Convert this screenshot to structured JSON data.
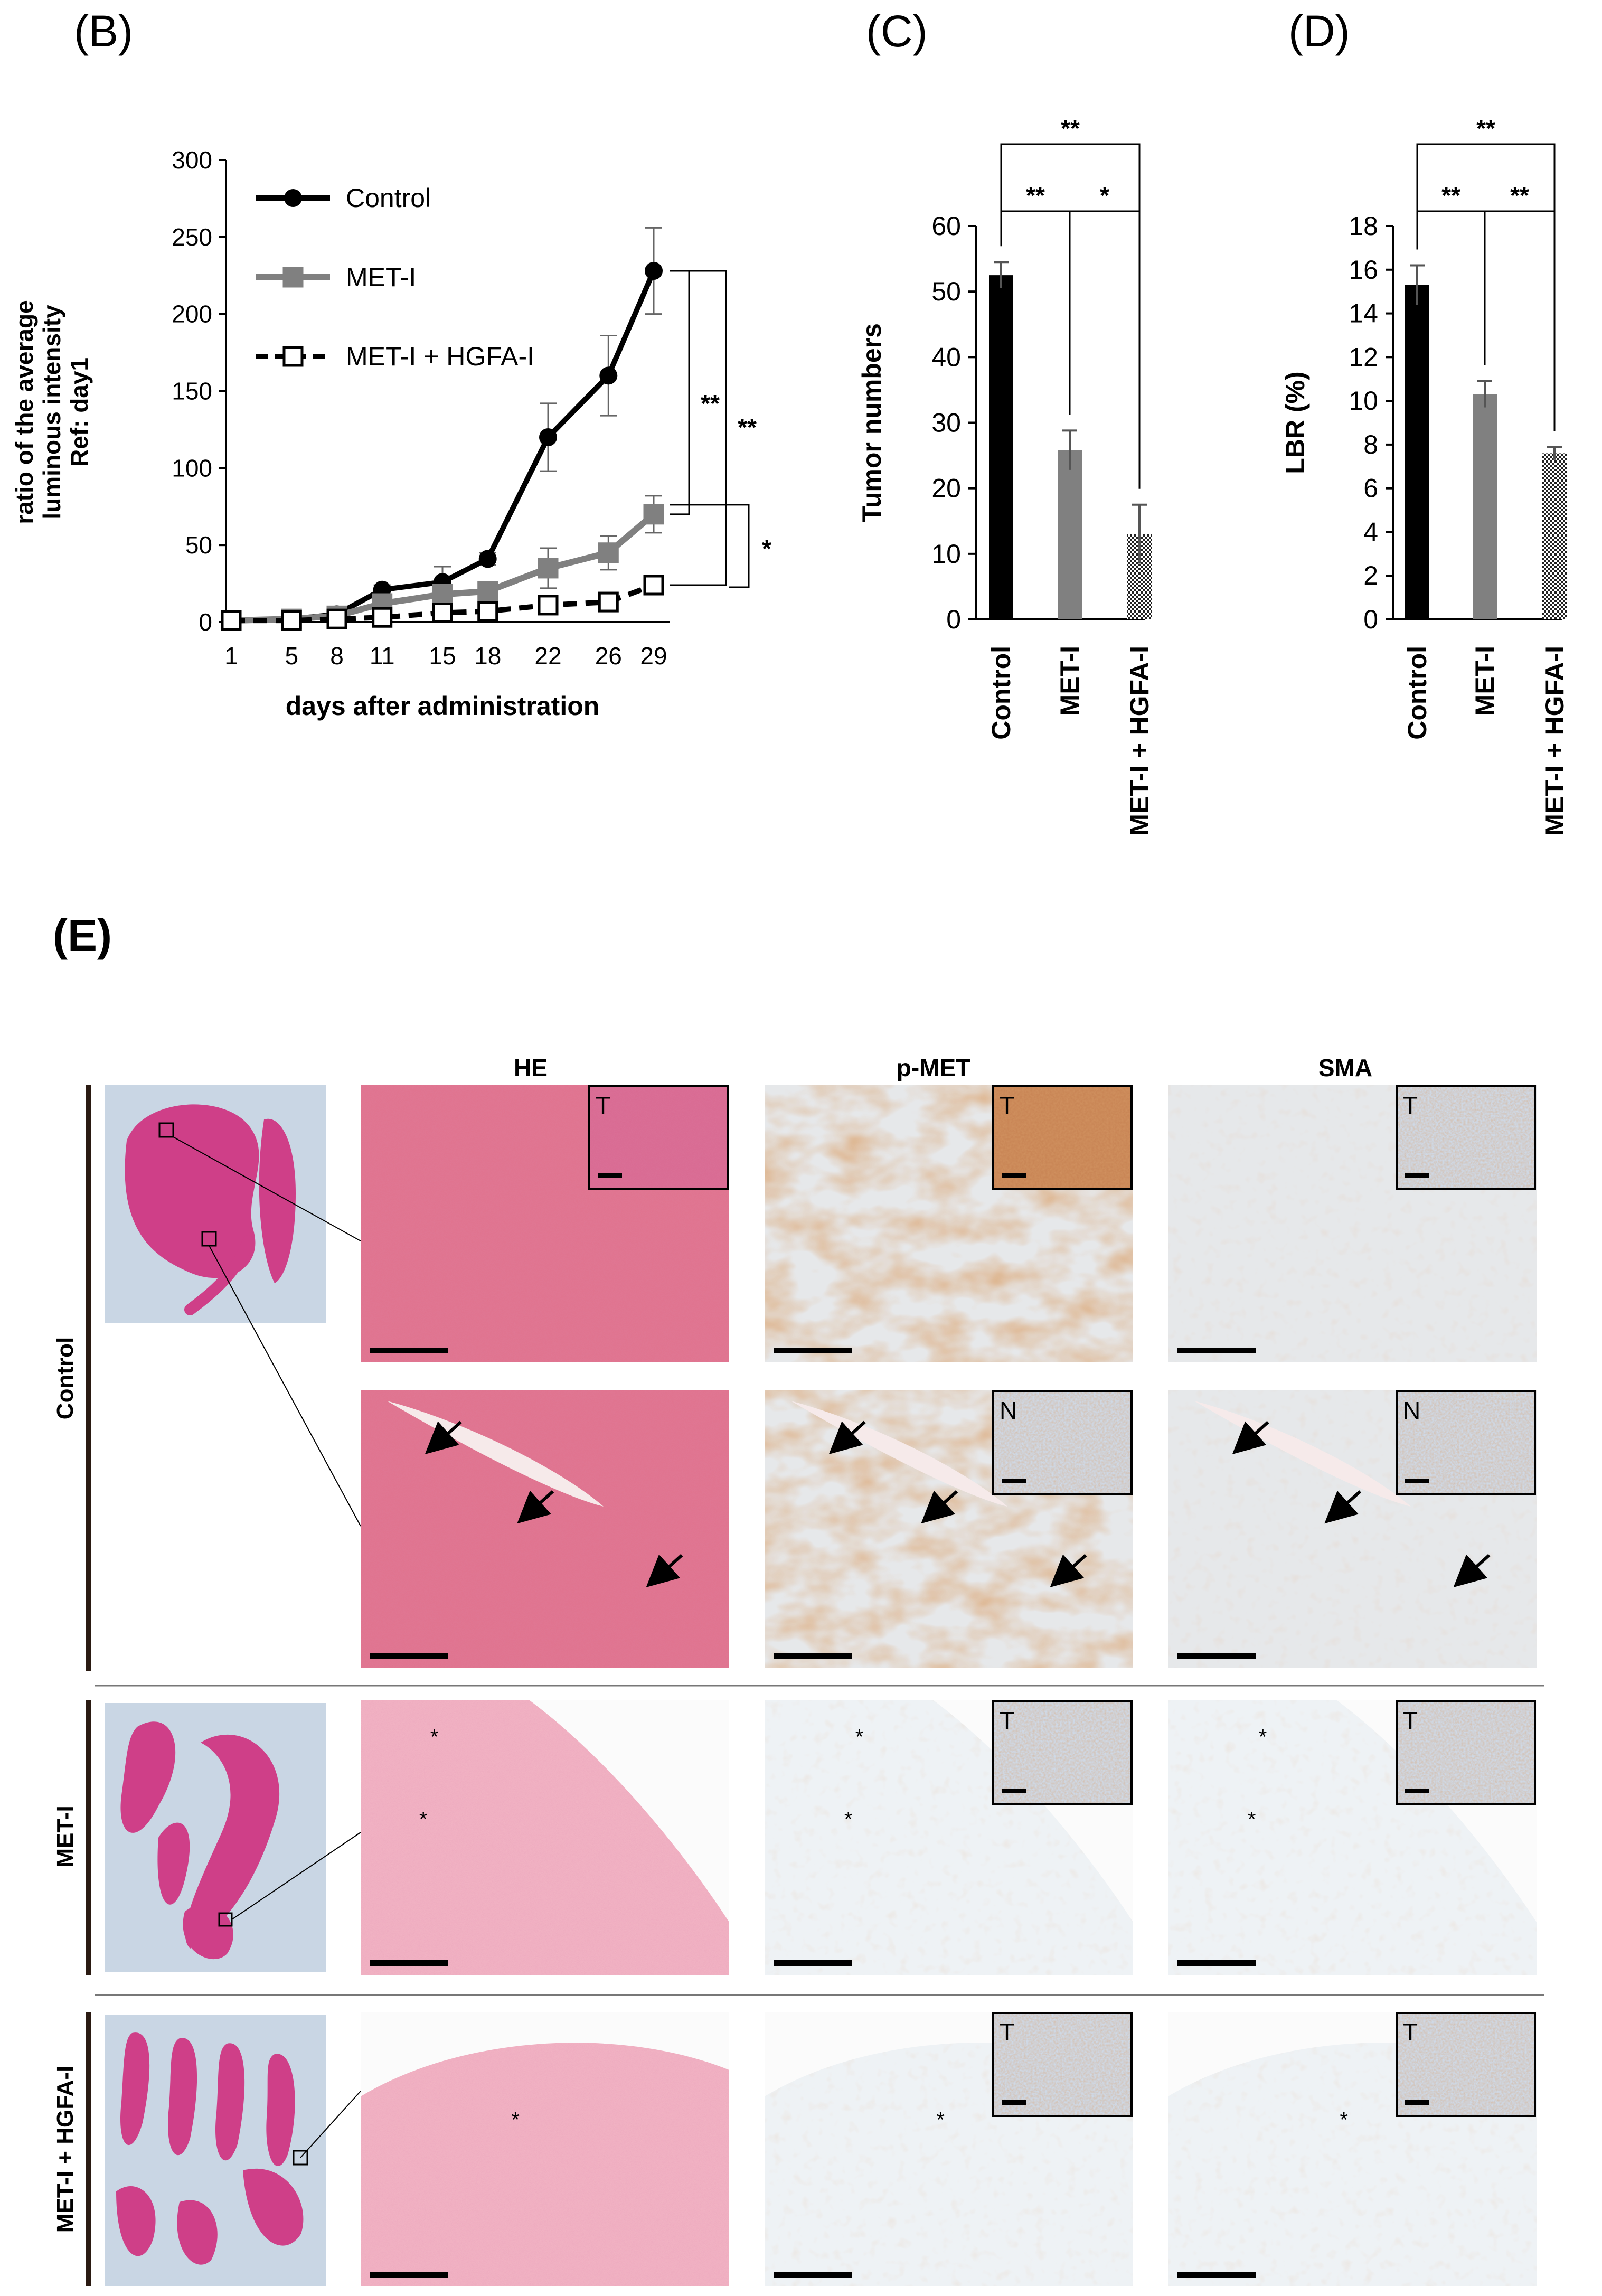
{
  "panels": {
    "B": "(B)",
    "C": "(C)",
    "D": "(D)",
    "E": "(E)"
  },
  "colors": {
    "control": "#000000",
    "met_i": "#808080",
    "combo_fill": "#ffffff",
    "he_tissue": "#e26f93",
    "ihc_background": "#dde6ee",
    "dab_brown": "#b5652e"
  },
  "chart_data": [
    {
      "id": "B",
      "type": "line",
      "title": "",
      "xlabel": "days after administration",
      "ylabel": "ratio of the average luminous intensity Ref: day1",
      "ylabel_lines": [
        "ratio of the average",
        "luminous intensity",
        "Ref: day1"
      ],
      "x": [
        1,
        5,
        8,
        11,
        15,
        18,
        22,
        26,
        29
      ],
      "xticks": [
        "1",
        "5",
        "8",
        "11",
        "15",
        "18",
        "22",
        "26",
        "29"
      ],
      "ylim": [
        0,
        300
      ],
      "yticks": [
        0,
        50,
        100,
        150,
        200,
        250,
        300
      ],
      "legend": "top-left",
      "series": [
        {
          "name": "Control",
          "key": "control",
          "values": [
            1,
            2,
            5,
            21,
            26,
            41,
            120,
            160,
            228
          ],
          "errors": [
            0,
            1,
            2,
            3,
            10,
            4,
            22,
            26,
            28
          ]
        },
        {
          "name": "MET-I",
          "key": "met_i",
          "values": [
            1,
            2,
            4,
            12,
            18,
            20,
            35,
            45,
            70
          ],
          "errors": [
            0,
            1,
            1,
            3,
            6,
            4,
            13,
            11,
            12
          ]
        },
        {
          "name": "MET-I + HGFA-I",
          "key": "combo",
          "values": [
            1,
            1,
            2,
            3,
            6,
            7,
            11,
            13,
            24
          ],
          "errors": [
            0,
            0,
            1,
            1,
            2,
            2,
            3,
            2,
            6
          ]
        }
      ],
      "significance": [
        "**",
        "**",
        "*"
      ]
    },
    {
      "id": "C",
      "type": "bar",
      "title": "",
      "ylabel": "Tumor numbers",
      "categories": [
        "Control",
        "MET-I",
        "MET-I + HGFA-I"
      ],
      "values": [
        52.5,
        25.8,
        13
      ],
      "errors": [
        2,
        3,
        4.5
      ],
      "ylim": [
        0,
        60
      ],
      "yticks": [
        0,
        10,
        20,
        30,
        40,
        50,
        60
      ],
      "significance": [
        "**",
        "**",
        "*"
      ]
    },
    {
      "id": "D",
      "type": "bar",
      "title": "",
      "ylabel": "LBR (%)",
      "categories": [
        "Control",
        "MET-I",
        "MET-I + HGFA-I"
      ],
      "values": [
        15.3,
        10.3,
        7.6
      ],
      "errors": [
        0.9,
        0.6,
        0.3
      ],
      "ylim": [
        0,
        18
      ],
      "yticks": [
        0,
        2,
        4,
        6,
        8,
        10,
        12,
        14,
        16,
        18
      ],
      "significance": [
        "**",
        "**",
        "**"
      ]
    }
  ],
  "histology": {
    "columns": [
      "HE",
      "p-MET",
      "SMA"
    ],
    "groups": [
      "Control",
      "MET-I",
      "MET-I + HGFA-I"
    ],
    "inset_labels": {
      "tumor": "T",
      "normal": "N"
    },
    "marker_star": "*"
  }
}
